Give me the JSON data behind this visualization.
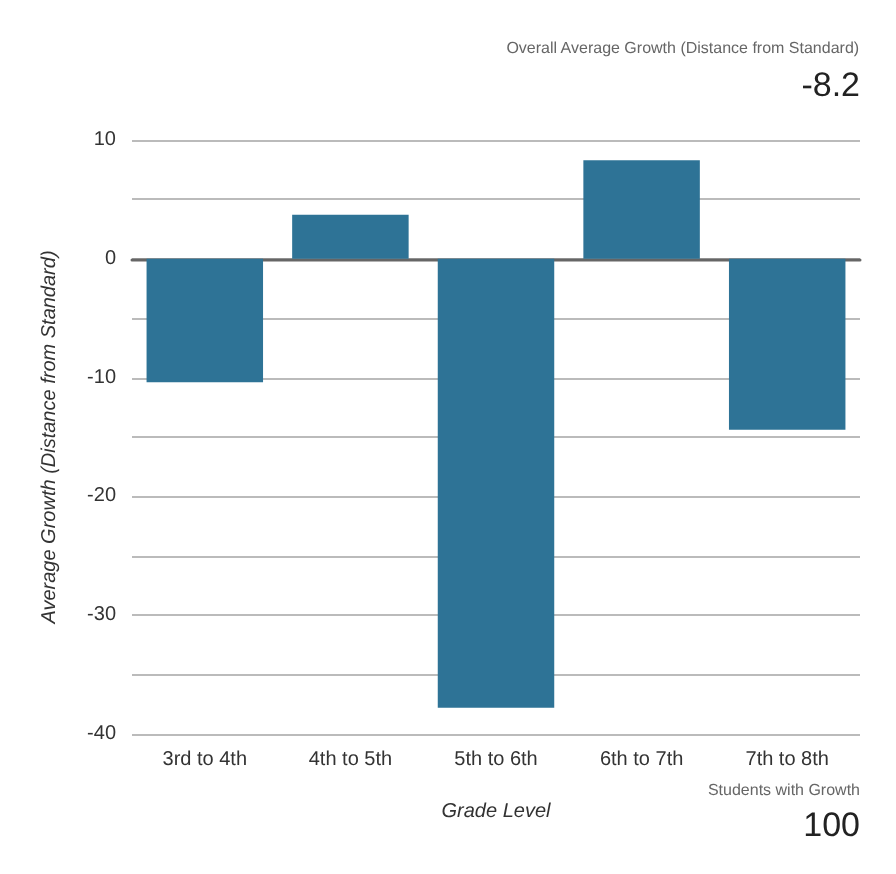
{
  "chart_data": {
    "type": "bar",
    "xlabel": "Grade Level",
    "ylabel": "Average Growth (Distance from Standard)",
    "categories": [
      "3rd to 4th",
      "4th to 5th",
      "5th to 6th",
      "6th to 7th",
      "7th to 8th"
    ],
    "values": [
      -10.4,
      3.7,
      -37.8,
      8.3,
      -14.4
    ],
    "color": "#2e7396",
    "ylim": [
      -40,
      10
    ],
    "yticks": [
      -40,
      {
        "value": -35,
        "label": null
      },
      -30,
      {
        "value": -25,
        "label": null
      },
      -20,
      {
        "value": -15,
        "label": null
      },
      -10,
      {
        "value": -5,
        "label": null
      },
      0,
      {
        "value": 5,
        "label": null
      },
      10
    ],
    "grid": "y",
    "annotations": [
      "Overall Average Growth (Distance from Standard)",
      "-8.2",
      "Students with Growth",
      "100"
    ]
  }
}
